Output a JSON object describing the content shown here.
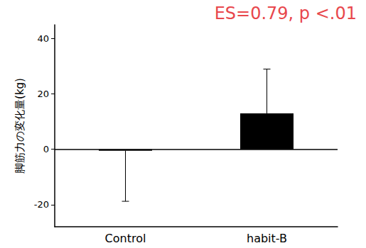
{
  "chart_data": {
    "type": "bar",
    "annotation": "ES=0.79, p <.01",
    "y_label": "脚筋力の変化量(kg)",
    "categories": [
      "Control",
      "habit-B"
    ],
    "values": [
      -0.5,
      13
    ],
    "errors": [
      18.3,
      16
    ],
    "color": "#000000",
    "ylim": [
      -28,
      45
    ],
    "yticks": [
      -20,
      0,
      20,
      40
    ],
    "grid": false
  }
}
